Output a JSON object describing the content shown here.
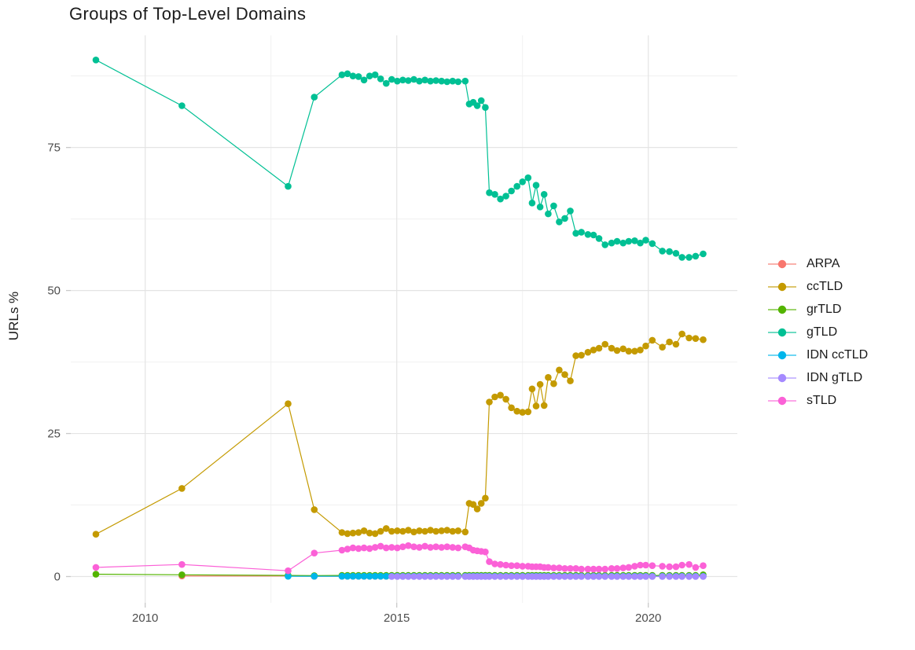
{
  "chart_data": {
    "type": "line",
    "title": "Groups of Top-Level Domains",
    "xlabel": "",
    "ylabel": "URLs %",
    "grid": true,
    "legend_position": "right",
    "xlim": [
      2008.52,
      2021.77
    ],
    "ylim": [
      -4.6,
      94.6
    ],
    "x_ticks": [
      2010,
      2015,
      2020
    ],
    "x_minor_ticks": [
      2012.5,
      2017.5
    ],
    "y_ticks": [
      0,
      25,
      50,
      75
    ],
    "y_minor_ticks": [
      12.5,
      37.5,
      62.5,
      87.5
    ],
    "x": [
      2009.02,
      2010.73,
      2012.84,
      2013.36,
      2013.91,
      2014.02,
      2014.13,
      2014.24,
      2014.35,
      2014.46,
      2014.57,
      2014.68,
      2014.79,
      2014.9,
      2015.01,
      2015.12,
      2015.23,
      2015.34,
      2015.45,
      2015.56,
      2015.67,
      2015.78,
      2015.89,
      2016.0,
      2016.11,
      2016.22,
      2016.36,
      2016.44,
      2016.52,
      2016.6,
      2016.68,
      2016.76,
      2016.84,
      2016.95,
      2017.06,
      2017.17,
      2017.28,
      2017.39,
      2017.5,
      2017.61,
      2017.69,
      2017.77,
      2017.85,
      2017.93,
      2018.01,
      2018.12,
      2018.23,
      2018.34,
      2018.45,
      2018.56,
      2018.67,
      2018.8,
      2018.91,
      2019.02,
      2019.14,
      2019.27,
      2019.38,
      2019.5,
      2019.61,
      2019.73,
      2019.84,
      2019.95,
      2020.08,
      2020.28,
      2020.42,
      2020.55,
      2020.67,
      2020.81,
      2020.94,
      2021.09
    ],
    "series": [
      {
        "name": "ARPA",
        "color": "#F8766D",
        "values": [
          null,
          0.1,
          0.1,
          0.05,
          0.05,
          0.05,
          0.05,
          0.05,
          0.05,
          0.05,
          0.05,
          0.05,
          0.05,
          0.05,
          0.05,
          0.05,
          0.05,
          0.05,
          0.05,
          0.05,
          0.05,
          0.05,
          0.05,
          0.05,
          0.05,
          0.05,
          0.05,
          0.05,
          0.05,
          0.05,
          0.05,
          0.05,
          0.05,
          0.05,
          0.05,
          0.05,
          0.05,
          0.05,
          0.05,
          0.05,
          0.05,
          0.05,
          0.05,
          0.05,
          0.05,
          0.05,
          0.05,
          0.05,
          0.05,
          0.05,
          0.05,
          0.05,
          0.05,
          0.05,
          0.05,
          0.05,
          0.05,
          0.05,
          0.05,
          0.05,
          0.05,
          0.05,
          0.05,
          0.05,
          0.05,
          0.05,
          0.05,
          0.05,
          0.05,
          0.05
        ]
      },
      {
        "name": "ccTLD",
        "color": "#C49A00",
        "values": [
          7.4,
          15.4,
          30.2,
          11.7,
          7.7,
          7.5,
          7.6,
          7.7,
          8.0,
          7.6,
          7.5,
          7.9,
          8.4,
          7.9,
          8.0,
          7.9,
          8.1,
          7.8,
          8.0,
          7.9,
          8.1,
          7.9,
          8.0,
          8.1,
          7.9,
          8.0,
          7.8,
          12.8,
          12.6,
          11.8,
          12.8,
          13.7,
          30.5,
          31.4,
          31.7,
          31.0,
          29.5,
          28.9,
          28.7,
          28.8,
          32.8,
          29.8,
          33.6,
          29.9,
          34.8,
          33.7,
          36.1,
          35.3,
          34.2,
          38.6,
          38.7,
          39.2,
          39.6,
          39.9,
          40.6,
          39.9,
          39.5,
          39.8,
          39.4,
          39.4,
          39.6,
          40.3,
          41.3,
          40.1,
          41.0,
          40.6,
          42.4,
          41.7,
          41.6,
          41.4
        ]
      },
      {
        "name": "grTLD",
        "color": "#53B400",
        "values": [
          0.4,
          0.3,
          0.2,
          0.15,
          0.2,
          0.2,
          0.2,
          0.2,
          0.2,
          0.2,
          0.2,
          0.2,
          0.2,
          0.2,
          0.2,
          0.2,
          0.2,
          0.2,
          0.2,
          0.2,
          0.2,
          0.2,
          0.2,
          0.2,
          0.2,
          0.2,
          0.2,
          0.2,
          0.2,
          0.2,
          0.2,
          0.2,
          0.2,
          0.2,
          0.2,
          0.2,
          0.2,
          0.2,
          0.2,
          0.2,
          0.2,
          0.2,
          0.2,
          0.2,
          0.2,
          0.2,
          0.2,
          0.2,
          0.2,
          0.2,
          0.2,
          0.2,
          0.2,
          0.2,
          0.2,
          0.2,
          0.2,
          0.2,
          0.2,
          0.2,
          0.2,
          0.2,
          0.2,
          0.2,
          0.2,
          0.2,
          0.2,
          0.2,
          0.2,
          0.3
        ]
      },
      {
        "name": "gTLD",
        "color": "#00C094",
        "values": [
          90.3,
          82.3,
          68.2,
          83.8,
          87.7,
          87.9,
          87.5,
          87.4,
          86.8,
          87.5,
          87.7,
          87.0,
          86.2,
          86.9,
          86.6,
          86.8,
          86.7,
          86.9,
          86.6,
          86.8,
          86.6,
          86.7,
          86.6,
          86.5,
          86.6,
          86.5,
          86.6,
          82.6,
          82.9,
          82.3,
          83.2,
          82.0,
          67.1,
          66.8,
          66.0,
          66.5,
          67.4,
          68.2,
          69.0,
          69.7,
          65.3,
          68.4,
          64.6,
          66.8,
          63.4,
          64.8,
          62.0,
          62.6,
          63.9,
          60.0,
          60.2,
          59.8,
          59.7,
          59.1,
          58.0,
          58.3,
          58.6,
          58.3,
          58.6,
          58.7,
          58.3,
          58.8,
          58.2,
          56.9,
          56.8,
          56.5,
          55.8,
          55.8,
          56.0,
          56.4
        ]
      },
      {
        "name": "IDN ccTLD",
        "color": "#00B6EB",
        "values": [
          null,
          null,
          0.05,
          0.05,
          0.05,
          0.05,
          0.05,
          0.05,
          0.05,
          0.05,
          0.05,
          0.05,
          0.05,
          0.05,
          0.05,
          0.05,
          0.05,
          0.05,
          0.05,
          0.05,
          0.05,
          0.05,
          0.05,
          0.05,
          0.05,
          0.05,
          0.05,
          0.05,
          0.05,
          0.05,
          0.05,
          0.05,
          0.05,
          0.05,
          0.05,
          0.05,
          0.05,
          0.05,
          0.05,
          0.05,
          0.05,
          0.05,
          0.05,
          0.05,
          0.05,
          0.05,
          0.05,
          0.05,
          0.05,
          0.05,
          0.05,
          0.05,
          0.05,
          0.05,
          0.05,
          0.05,
          0.05,
          0.05,
          0.05,
          0.05,
          0.05,
          0.05,
          0.05,
          0.05,
          0.05,
          0.05,
          0.05,
          0.05,
          0.05,
          0.05
        ]
      },
      {
        "name": "IDN gTLD",
        "color": "#A58AFF",
        "values": [
          null,
          null,
          null,
          null,
          null,
          null,
          null,
          null,
          null,
          null,
          null,
          null,
          null,
          0,
          0,
          0,
          0,
          0,
          0,
          0,
          0,
          0,
          0,
          0,
          0,
          0,
          0,
          0,
          0,
          0,
          0,
          0,
          0,
          0,
          0,
          0,
          0,
          0,
          0,
          0,
          0,
          0,
          0,
          0,
          0,
          0,
          0,
          0,
          0,
          0,
          0,
          0,
          0,
          0,
          0,
          0,
          0,
          0,
          0,
          0,
          0,
          0,
          0,
          0,
          0,
          0,
          0,
          0,
          0,
          0
        ]
      },
      {
        "name": "sTLD",
        "color": "#FB61D7",
        "values": [
          1.6,
          2.1,
          1.0,
          4.1,
          4.6,
          4.8,
          5.0,
          4.9,
          5.0,
          4.9,
          5.1,
          5.3,
          5.0,
          5.1,
          5.0,
          5.2,
          5.4,
          5.2,
          5.1,
          5.3,
          5.1,
          5.2,
          5.1,
          5.2,
          5.1,
          5.0,
          5.2,
          5.0,
          4.6,
          4.5,
          4.4,
          4.3,
          2.6,
          2.2,
          2.1,
          2.0,
          1.9,
          1.9,
          1.8,
          1.8,
          1.7,
          1.7,
          1.7,
          1.6,
          1.6,
          1.5,
          1.5,
          1.4,
          1.4,
          1.4,
          1.3,
          1.3,
          1.3,
          1.3,
          1.3,
          1.4,
          1.4,
          1.5,
          1.6,
          1.8,
          2.0,
          2.0,
          1.9,
          1.8,
          1.7,
          1.7,
          2.0,
          2.1,
          1.6,
          1.9
        ]
      }
    ]
  }
}
